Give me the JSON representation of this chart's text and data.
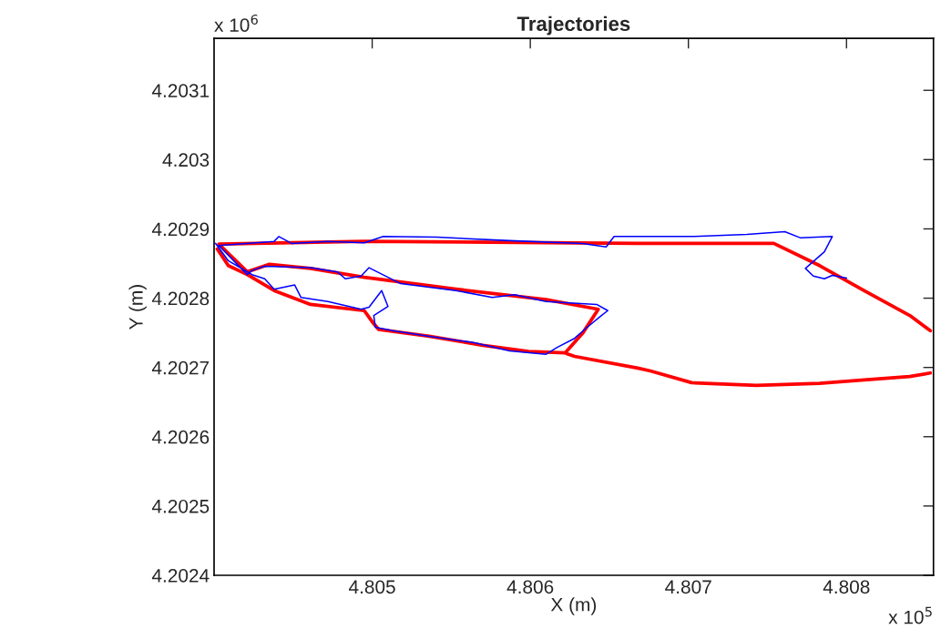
{
  "chart_data": {
    "type": "line",
    "title": "Trajectories",
    "xlabel": "X (m)",
    "ylabel": "Y (m)",
    "annotations": [
      "x 10$^{6}$",
      "x 10$^{5}$"
    ],
    "xlim": [
      4.804,
      4.80855
    ],
    "ylim": [
      4.2024,
      4.203175
    ],
    "xticks": [
      4.805,
      4.806,
      4.807,
      4.808
    ],
    "yticks": [
      4.2024,
      4.2025,
      4.2026,
      4.2027,
      4.2028,
      4.2029,
      4.203,
      4.2031
    ],
    "grid": false,
    "line_style": "solid",
    "series": [
      {
        "color": "#ff0000",
        "x": [
          4.80402,
          4.80409,
          4.80421,
          4.80438,
          4.80461,
          4.80495,
          4.805,
          4.80504,
          4.80536,
          4.8057,
          4.80599,
          4.80622,
          4.80633,
          4.80643,
          4.8061,
          4.80553,
          4.80495,
          4.80461,
          4.80435,
          4.80421,
          4.80403,
          4.80495,
          4.8061,
          4.80668,
          4.80754,
          4.80783,
          4.80811,
          4.8084,
          4.80853,
          null,
          4.80853,
          4.8084,
          4.80811,
          4.80783,
          4.80743,
          4.80702,
          4.80676,
          4.80668,
          4.80628,
          4.80623
        ],
        "values": [
          4.202871,
          4.202847,
          4.202834,
          4.202811,
          4.202791,
          4.202782,
          4.202766,
          4.202755,
          4.202745,
          4.202732,
          4.202723,
          4.202721,
          4.202749,
          4.202784,
          4.202798,
          4.202813,
          4.20283,
          4.202843,
          4.202849,
          4.202838,
          4.202878,
          4.202882,
          4.20288,
          4.202879,
          4.202879,
          4.202847,
          4.202811,
          4.202775,
          4.202753,
          null,
          4.202692,
          4.202687,
          4.202682,
          4.202677,
          4.202674,
          4.202678,
          4.202695,
          4.202699,
          4.202716,
          4.20272
        ]
      },
      {
        "color": "#0000ff",
        "x": [
          4.80401,
          4.80409,
          4.80424,
          4.80432,
          4.80438,
          4.80451,
          4.80455,
          4.80472,
          4.80493,
          4.80498,
          4.80506,
          4.8051,
          4.80501,
          4.80502,
          4.80513,
          4.80536,
          4.80564,
          4.80587,
          4.8061,
          4.80617,
          4.80628,
          4.80636,
          4.80645,
          4.80649,
          4.80642,
          4.8061,
          4.8059,
          4.80576,
          4.80553,
          4.80518,
          4.80498,
          4.80493,
          4.80483,
          4.80478,
          4.80461,
          4.80432,
          4.80424,
          4.80421,
          4.80403,
          4.80438,
          4.80441,
          4.80449,
          4.80472,
          4.80495,
          4.80507,
          4.80541,
          4.80587,
          4.80633,
          4.80648,
          4.80653,
          4.80702,
          4.80737,
          4.80761,
          4.80771,
          4.80791,
          4.80786,
          4.80774,
          4.80779,
          4.80786,
          4.80791,
          4.808
        ],
        "values": [
          4.202879,
          4.202854,
          4.202834,
          4.202828,
          4.202813,
          4.202819,
          4.202801,
          4.202795,
          4.202784,
          4.202787,
          4.202811,
          4.202788,
          4.202775,
          4.202758,
          4.202753,
          4.202745,
          4.202736,
          4.202724,
          4.202719,
          4.202729,
          4.202742,
          4.202758,
          4.202775,
          4.202782,
          4.202791,
          4.202795,
          4.202805,
          4.202801,
          4.202811,
          4.202821,
          4.202844,
          4.202832,
          4.202828,
          4.202838,
          4.202844,
          4.202846,
          4.20284,
          4.202834,
          4.202876,
          4.202882,
          4.202889,
          4.202879,
          4.202882,
          4.20288,
          4.202889,
          4.202888,
          4.202883,
          4.202879,
          4.202874,
          4.202889,
          4.202889,
          4.202892,
          4.202896,
          4.202887,
          4.202889,
          4.202867,
          4.202843,
          4.202832,
          4.202828,
          4.202833,
          4.202829
        ]
      }
    ]
  }
}
